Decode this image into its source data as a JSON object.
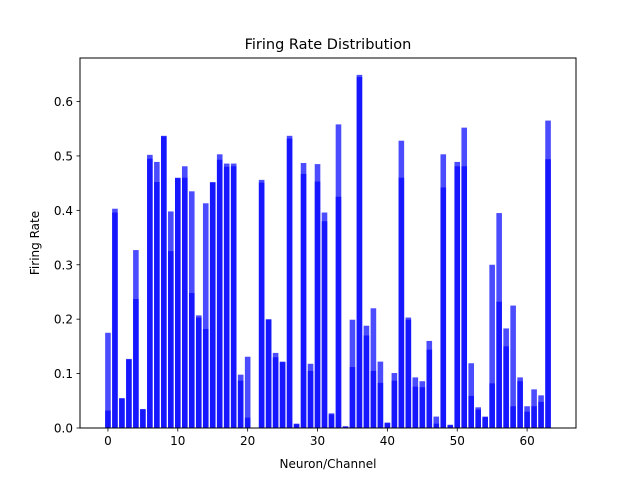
{
  "chart_data": {
    "type": "bar",
    "title": "Firing Rate Distribution",
    "xlabel": "Neuron/Channel",
    "ylabel": "Firing Rate",
    "xlim": [
      -4.0,
      67.0
    ],
    "ylim": [
      0.0,
      0.68
    ],
    "x_ticks": [
      0,
      10,
      20,
      30,
      40,
      50,
      60
    ],
    "y_ticks": [
      0.0,
      0.1,
      0.2,
      0.3,
      0.4,
      0.5,
      0.6
    ],
    "grid": false,
    "legend": "none",
    "bar_color": "#0000ff",
    "bar_opacity": 0.7,
    "x": [
      0,
      1,
      2,
      3,
      4,
      5,
      6,
      7,
      8,
      9,
      10,
      11,
      12,
      13,
      14,
      15,
      16,
      17,
      18,
      19,
      20,
      21,
      22,
      23,
      24,
      25,
      26,
      27,
      28,
      29,
      30,
      31,
      32,
      33,
      34,
      35,
      36,
      37,
      38,
      39,
      40,
      41,
      42,
      43,
      44,
      45,
      46,
      47,
      48,
      49,
      50,
      51,
      52,
      53,
      54,
      55,
      56,
      57,
      58,
      59,
      60,
      61,
      62,
      63
    ],
    "series": [
      {
        "values": [
          0.175,
          0.403,
          0.055,
          0.127,
          0.327,
          0.035,
          0.502,
          0.489,
          0.537,
          0.398,
          0.46,
          0.481,
          0.435,
          0.207,
          0.413,
          0.452,
          0.503,
          0.486,
          0.486,
          0.098,
          0.131,
          0.0,
          0.456,
          0.2,
          0.138,
          0.122,
          0.537,
          0.008,
          0.487,
          0.118,
          0.485,
          0.396,
          0.027,
          0.558,
          0.003,
          0.199,
          0.649,
          0.188,
          0.22,
          0.122,
          0.01,
          0.101,
          0.528,
          0.203,
          0.093,
          0.086,
          0.16,
          0.021,
          0.503,
          0.006,
          0.489,
          0.552,
          0.119,
          0.038,
          0.021,
          0.3,
          0.395,
          0.183,
          0.225,
          0.093,
          0.04,
          0.071,
          0.06,
          0.565
        ]
      },
      {
        "values": [
          0.032,
          0.396,
          0.054,
          0.126,
          0.237,
          0.034,
          0.495,
          0.452,
          0.536,
          0.325,
          0.459,
          0.46,
          0.248,
          0.203,
          0.182,
          0.451,
          0.493,
          0.48,
          0.481,
          0.087,
          0.019,
          0.0,
          0.451,
          0.199,
          0.13,
          0.121,
          0.532,
          0.007,
          0.467,
          0.105,
          0.453,
          0.38,
          0.025,
          0.425,
          0.003,
          0.112,
          0.645,
          0.17,
          0.105,
          0.083,
          0.009,
          0.087,
          0.46,
          0.199,
          0.076,
          0.075,
          0.144,
          0.008,
          0.442,
          0.005,
          0.481,
          0.481,
          0.059,
          0.034,
          0.02,
          0.082,
          0.232,
          0.15,
          0.04,
          0.086,
          0.03,
          0.04,
          0.048,
          0.494
        ]
      }
    ]
  }
}
